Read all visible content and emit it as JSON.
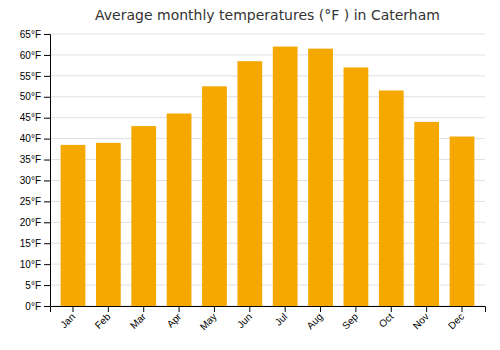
{
  "chart_data": {
    "type": "bar",
    "title": "Average monthly temperatures (°F ) in Caterham",
    "categories": [
      "Jan",
      "Feb",
      "Mar",
      "Apr",
      "May",
      "Jun",
      "Jul",
      "Aug",
      "Sep",
      "Oct",
      "Nov",
      "Dec"
    ],
    "values": [
      38.5,
      39.0,
      43.0,
      46.0,
      52.5,
      58.5,
      62.0,
      61.5,
      57.0,
      51.5,
      44.0,
      40.5
    ],
    "color": "#F5A800",
    "ylim": [
      0,
      65
    ],
    "yticks": [
      {
        "value": 0,
        "label": "0°F"
      },
      {
        "value": 5,
        "label": "5°F"
      },
      {
        "value": 10,
        "label": "10°F"
      },
      {
        "value": 15,
        "label": "15°F"
      },
      {
        "value": 20,
        "label": "20°F"
      },
      {
        "value": 25,
        "label": "25°F"
      },
      {
        "value": 30,
        "label": "30°F"
      },
      {
        "value": 35,
        "label": "35°F"
      },
      {
        "value": 40,
        "label": "40°F"
      },
      {
        "value": 45,
        "label": "45°F"
      },
      {
        "value": 50,
        "label": "50°F"
      },
      {
        "value": 55,
        "label": "55°F"
      },
      {
        "value": 60,
        "label": "60°F"
      },
      {
        "value": 65,
        "label": "65°F"
      }
    ],
    "grid": true
  }
}
